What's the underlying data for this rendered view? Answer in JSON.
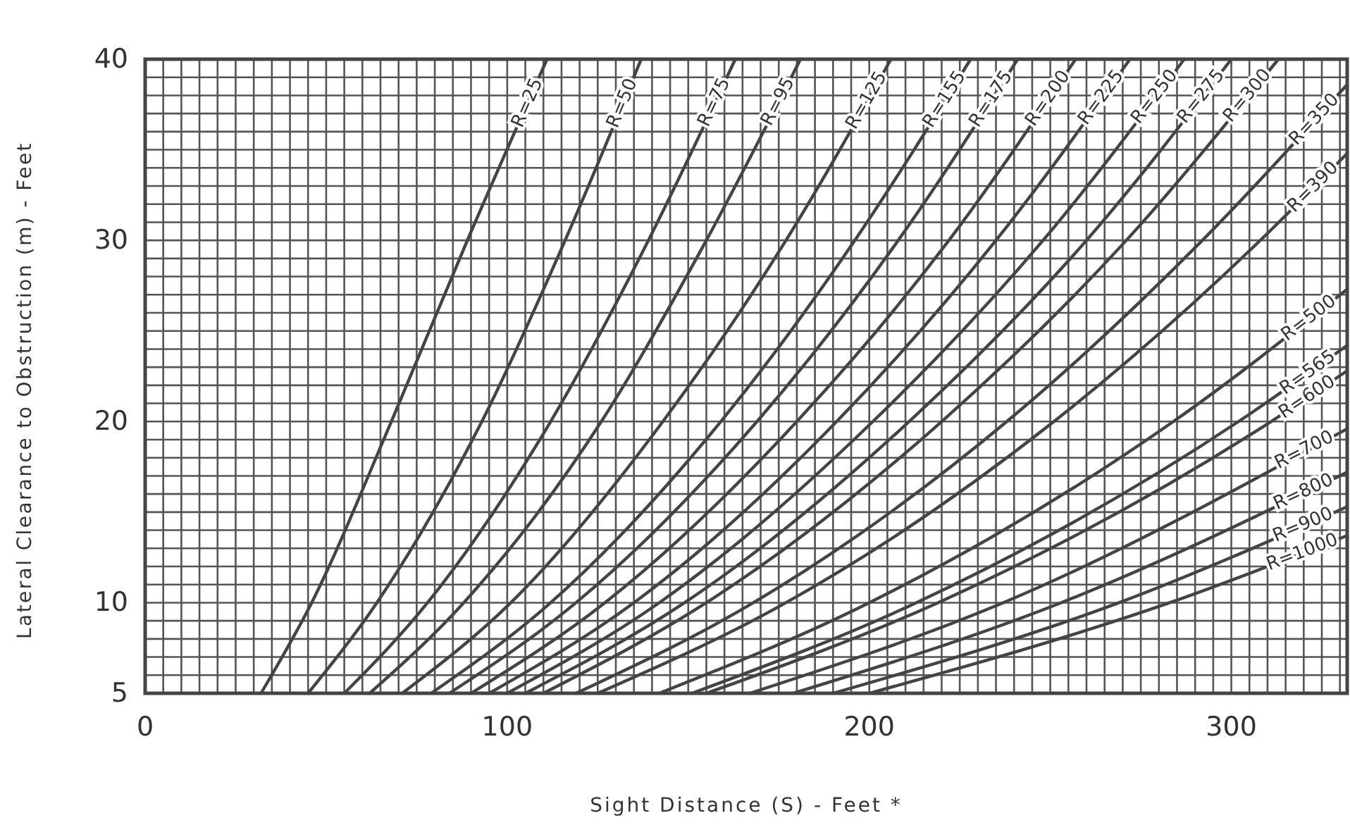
{
  "chart_data": {
    "type": "line",
    "xlabel": "Sight Distance (S) - Feet *",
    "ylabel": "Lateral Clearance to Obstruction (m) - Feet",
    "xlim": [
      0,
      332
    ],
    "ylim": [
      5,
      40
    ],
    "xticks": [
      0,
      {
        "value": 5,
        "label": null
      },
      {
        "value": 10,
        "label": null
      },
      {
        "value": 15,
        "label": null
      },
      {
        "value": 20,
        "label": null
      },
      {
        "value": 25,
        "label": null
      },
      {
        "value": 30,
        "label": null
      },
      {
        "value": 35,
        "label": null
      },
      {
        "value": 40,
        "label": null
      },
      {
        "value": 45,
        "label": null
      },
      {
        "value": 50,
        "label": null
      },
      {
        "value": 55,
        "label": null
      },
      {
        "value": 60,
        "label": null
      },
      {
        "value": 65,
        "label": null
      },
      {
        "value": 70,
        "label": null
      },
      {
        "value": 75,
        "label": null
      },
      {
        "value": 80,
        "label": null
      },
      {
        "value": 85,
        "label": null
      },
      {
        "value": 90,
        "label": null
      },
      {
        "value": 95,
        "label": null
      },
      100,
      {
        "value": 105,
        "label": null
      },
      {
        "value": 110,
        "label": null
      },
      {
        "value": 115,
        "label": null
      },
      {
        "value": 120,
        "label": null
      },
      {
        "value": 125,
        "label": null
      },
      {
        "value": 130,
        "label": null
      },
      {
        "value": 135,
        "label": null
      },
      {
        "value": 140,
        "label": null
      },
      {
        "value": 145,
        "label": null
      },
      {
        "value": 150,
        "label": null
      },
      {
        "value": 155,
        "label": null
      },
      {
        "value": 160,
        "label": null
      },
      {
        "value": 165,
        "label": null
      },
      {
        "value": 170,
        "label": null
      },
      {
        "value": 175,
        "label": null
      },
      {
        "value": 180,
        "label": null
      },
      {
        "value": 185,
        "label": null
      },
      {
        "value": 190,
        "label": null
      },
      {
        "value": 195,
        "label": null
      },
      200,
      {
        "value": 205,
        "label": null
      },
      {
        "value": 210,
        "label": null
      },
      {
        "value": 215,
        "label": null
      },
      {
        "value": 220,
        "label": null
      },
      {
        "value": 225,
        "label": null
      },
      {
        "value": 230,
        "label": null
      },
      {
        "value": 235,
        "label": null
      },
      {
        "value": 240,
        "label": null
      },
      {
        "value": 245,
        "label": null
      },
      {
        "value": 250,
        "label": null
      },
      {
        "value": 255,
        "label": null
      },
      {
        "value": 260,
        "label": null
      },
      {
        "value": 265,
        "label": null
      },
      {
        "value": 270,
        "label": null
      },
      {
        "value": 275,
        "label": null
      },
      {
        "value": 280,
        "label": null
      },
      {
        "value": 285,
        "label": null
      },
      {
        "value": 290,
        "label": null
      },
      {
        "value": 295,
        "label": null
      },
      300,
      {
        "value": 305,
        "label": null
      },
      {
        "value": 310,
        "label": null
      },
      {
        "value": 315,
        "label": null
      },
      {
        "value": 320,
        "label": null
      },
      {
        "value": 325,
        "label": null
      },
      {
        "value": 330,
        "label": null
      }
    ],
    "yticks": [
      5,
      {
        "value": 6,
        "label": null
      },
      {
        "value": 7,
        "label": null
      },
      {
        "value": 8,
        "label": null
      },
      {
        "value": 9,
        "label": null
      },
      10,
      {
        "value": 11,
        "label": null
      },
      {
        "value": 12,
        "label": null
      },
      {
        "value": 13,
        "label": null
      },
      {
        "value": 14,
        "label": null
      },
      {
        "value": 15,
        "label": null
      },
      {
        "value": 16,
        "label": null
      },
      {
        "value": 17,
        "label": null
      },
      {
        "value": 18,
        "label": null
      },
      {
        "value": 19,
        "label": null
      },
      20,
      {
        "value": 21,
        "label": null
      },
      {
        "value": 22,
        "label": null
      },
      {
        "value": 23,
        "label": null
      },
      {
        "value": 24,
        "label": null
      },
      {
        "value": 25,
        "label": null
      },
      {
        "value": 26,
        "label": null
      },
      {
        "value": 27,
        "label": null
      },
      {
        "value": 28,
        "label": null
      },
      {
        "value": 29,
        "label": null
      },
      30,
      {
        "value": 31,
        "label": null
      },
      {
        "value": 32,
        "label": null
      },
      {
        "value": 33,
        "label": null
      },
      {
        "value": 34,
        "label": null
      },
      {
        "value": 35,
        "label": null
      },
      {
        "value": 36,
        "label": null
      },
      {
        "value": 37,
        "label": null
      },
      {
        "value": 38,
        "label": null
      },
      {
        "value": 39,
        "label": null
      },
      40
    ],
    "grid": true,
    "marker": "none",
    "line_style": "solid",
    "series": [
      {
        "name": "R=25",
        "color": "#444444",
        "x": [
          32,
          46,
          68,
          89,
          111
        ],
        "values": [
          5,
          10,
          20,
          30,
          40
        ]
      },
      {
        "name": "R=50",
        "color": "#444444",
        "x": [
          45,
          64,
          93,
          116,
          137
        ],
        "values": [
          5,
          10,
          20,
          30,
          40
        ]
      },
      {
        "name": "R=75",
        "color": "#444444",
        "x": [
          55,
          78,
          112,
          139,
          163
        ],
        "values": [
          5,
          10,
          20,
          30,
          40
        ]
      },
      {
        "name": "R=95",
        "color": "#444444",
        "x": [
          62,
          88,
          126,
          155,
          181
        ],
        "values": [
          5,
          10,
          20,
          30,
          40
        ]
      },
      {
        "name": "R=125",
        "color": "#444444",
        "x": [
          71,
          101,
          143,
          177,
          206
        ],
        "values": [
          5,
          10,
          20,
          30,
          40
        ]
      },
      {
        "name": "R=155",
        "color": "#444444",
        "x": [
          79,
          112,
          159,
          196,
          228
        ],
        "values": [
          5,
          10,
          20,
          30,
          40
        ]
      },
      {
        "name": "R=175",
        "color": "#444444",
        "x": [
          84,
          119,
          169,
          208,
          241
        ],
        "values": [
          5,
          10,
          20,
          30,
          40
        ]
      },
      {
        "name": "R=200",
        "color": "#444444",
        "x": [
          90,
          127,
          180,
          222,
          257
        ],
        "values": [
          5,
          10,
          20,
          30,
          40
        ]
      },
      {
        "name": "R=225",
        "color": "#444444",
        "x": [
          95,
          135,
          191,
          235,
          272
        ],
        "values": [
          5,
          10,
          20,
          30,
          40
        ]
      },
      {
        "name": "R=250",
        "color": "#444444",
        "x": [
          100,
          142,
          201,
          248,
          287
        ],
        "values": [
          5,
          10,
          20,
          30,
          40
        ]
      },
      {
        "name": "R=275",
        "color": "#444444",
        "x": [
          105,
          149,
          211,
          260,
          300
        ],
        "values": [
          5,
          10,
          20,
          30,
          40
        ]
      },
      {
        "name": "R=300",
        "color": "#444444",
        "x": [
          110,
          155,
          220,
          271,
          313
        ],
        "values": [
          5,
          10,
          20,
          30,
          40
        ]
      },
      {
        "name": "R=350",
        "color": "#444444",
        "x": [
          119,
          168,
          238,
          292,
          332
        ],
        "values": [
          5,
          10,
          20,
          30,
          38.6
        ]
      },
      {
        "name": "R=390",
        "color": "#444444",
        "x": [
          125,
          177,
          251,
          308,
          332
        ],
        "values": [
          5,
          10,
          20,
          30,
          34.8
        ]
      },
      {
        "name": "R=500",
        "color": "#444444",
        "x": [
          142,
          200,
          284,
          332
        ],
        "values": [
          5,
          10,
          20,
          27.3
        ]
      },
      {
        "name": "R=565",
        "color": "#444444",
        "x": [
          151,
          213,
          302,
          332
        ],
        "values": [
          5,
          10,
          20,
          24.2
        ]
      },
      {
        "name": "R=600",
        "color": "#444444",
        "x": [
          155,
          219,
          311,
          332
        ],
        "values": [
          5,
          10,
          20,
          22.8
        ]
      },
      {
        "name": "R=700",
        "color": "#444444",
        "x": [
          167,
          237,
          332
        ],
        "values": [
          5,
          10,
          19.6
        ]
      },
      {
        "name": "R=800",
        "color": "#444444",
        "x": [
          179,
          253,
          332
        ],
        "values": [
          5,
          10,
          17.2
        ]
      },
      {
        "name": "R=900",
        "color": "#444444",
        "x": [
          190,
          269,
          332
        ],
        "values": [
          5,
          10,
          15.3
        ]
      },
      {
        "name": "R=1000",
        "color": "#444444",
        "x": [
          200,
          283,
          332
        ],
        "values": [
          5,
          10,
          13.7
        ]
      }
    ]
  }
}
